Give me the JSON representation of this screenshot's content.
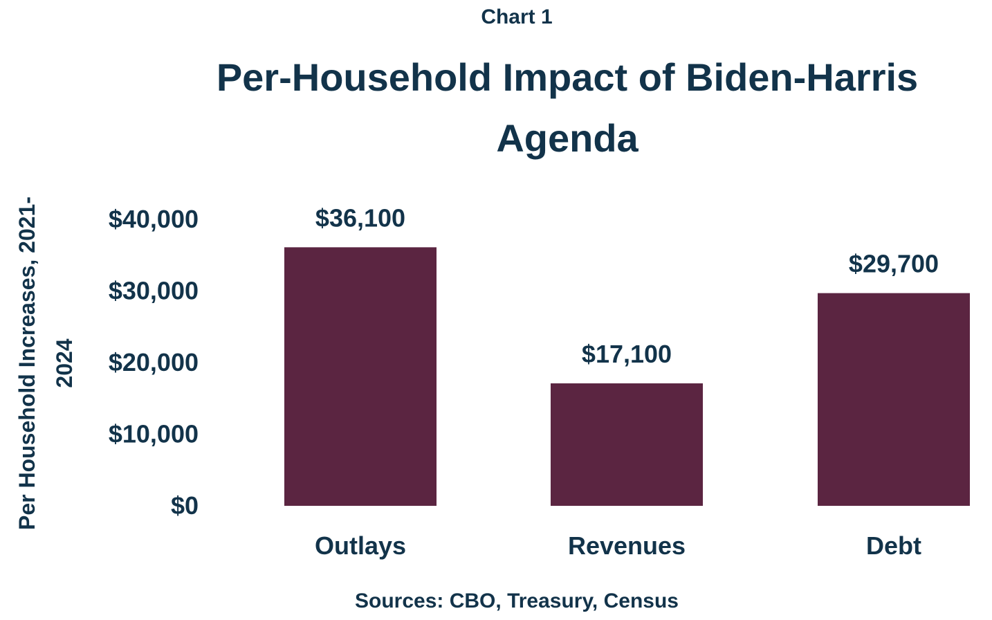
{
  "chart_data": {
    "type": "bar",
    "supertitle": "Chart 1",
    "title": [
      "Per-Household Impact of Biden-Harris",
      "Agenda"
    ],
    "ylabel": [
      "Per Household Increases, 2021-",
      "2024"
    ],
    "xlabel": "",
    "categories": [
      "Outlays",
      "Revenues",
      "Debt"
    ],
    "values": [
      36100,
      17100,
      29700
    ],
    "data_labels": [
      "$36,100",
      "$17,100",
      "$29,700"
    ],
    "yticks": [
      0,
      10000,
      20000,
      30000,
      40000
    ],
    "ytick_labels": [
      "$0",
      "$10,000",
      "$20,000",
      "$30,000",
      "$40,000"
    ],
    "ylim": [
      0,
      40000
    ],
    "grid": false,
    "legend": "none",
    "source": "Sources: CBO, Treasury, Census",
    "colors": {
      "bar": "#5B2541",
      "text": "#12334A"
    }
  }
}
